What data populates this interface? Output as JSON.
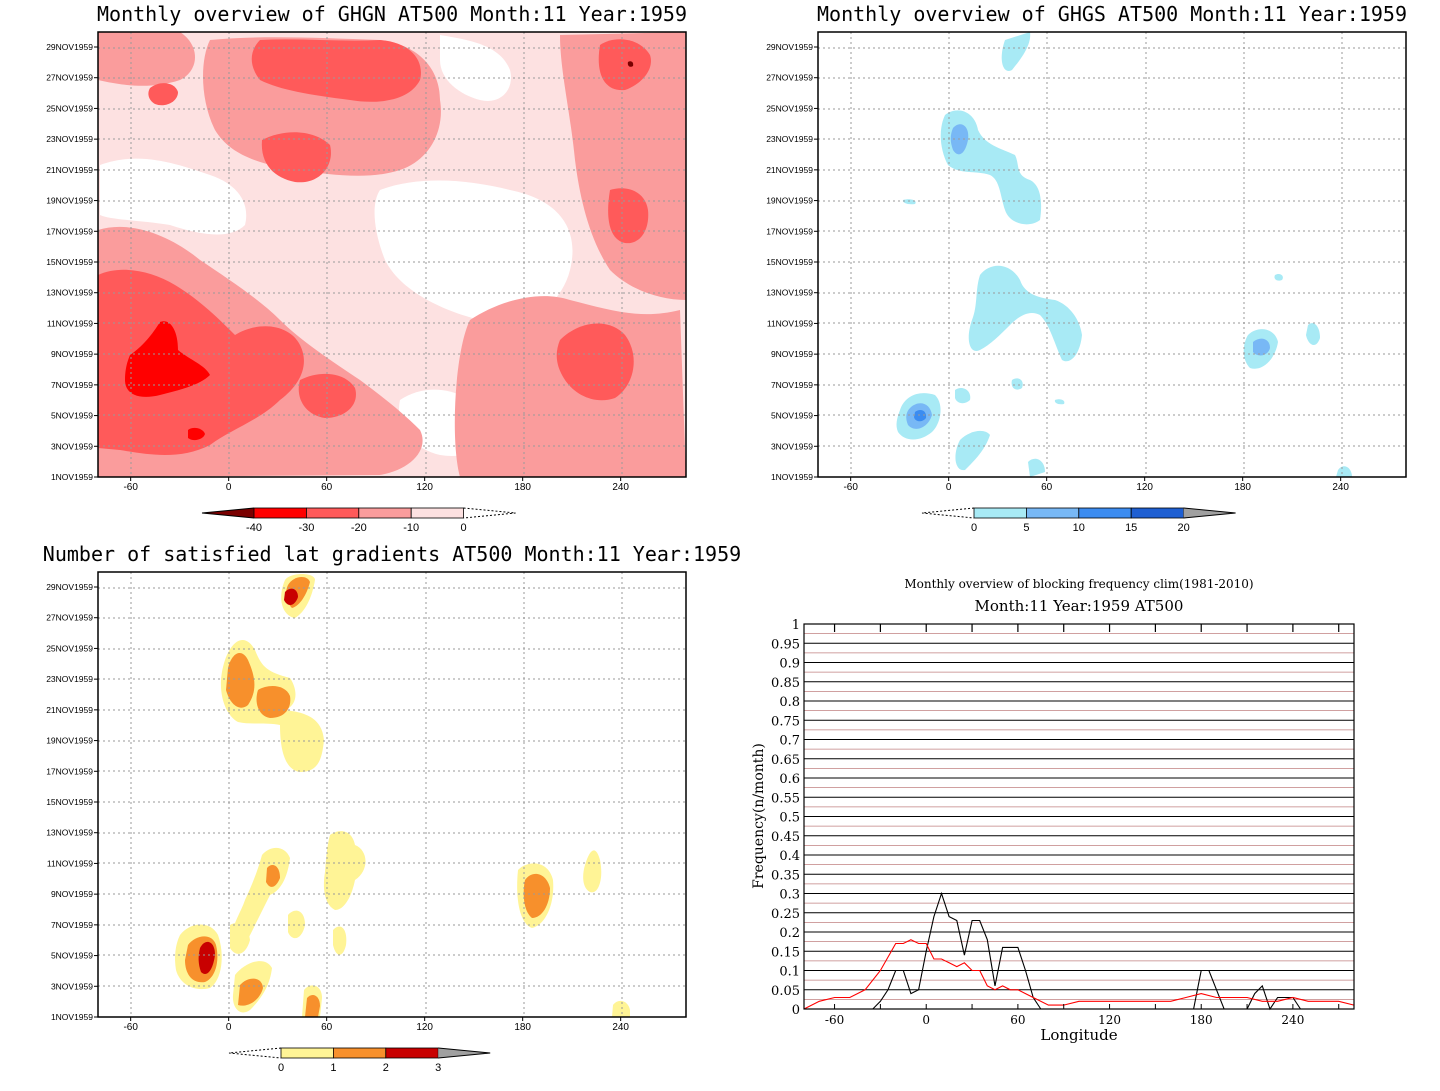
{
  "chart_data": [
    {
      "type": "heatmap",
      "title": "Monthly overview of GHGN AT500 Month:11 Year:1959",
      "x_ticks": [
        -60,
        0,
        60,
        120,
        180,
        240
      ],
      "y_ticks": [
        "1NOV1959",
        "3NOV1959",
        "5NOV1959",
        "7NOV1959",
        "9NOV1959",
        "11NOV1959",
        "13NOV1959",
        "15NOV1959",
        "17NOV1959",
        "19NOV1959",
        "21NOV1959",
        "23NOV1959",
        "25NOV1959",
        "27NOV1959",
        "29NOV1959"
      ],
      "xlim": [
        -80,
        280
      ],
      "levels": [
        -40,
        -30,
        -20,
        -10,
        0
      ],
      "colorbar_labels": [
        "-40",
        "-30",
        "-20",
        "-10",
        "0"
      ],
      "colors": [
        "#7a0000",
        "#ff0000",
        "#ff5a5a",
        "#fa9c9c",
        "#fde1e1",
        "#ffffff"
      ],
      "grid": true
    },
    {
      "type": "heatmap",
      "title": "Monthly overview of GHGS AT500 Month:11 Year:1959",
      "x_ticks": [
        -60,
        0,
        60,
        120,
        180,
        240
      ],
      "y_ticks": [
        "1NOV1959",
        "3NOV1959",
        "5NOV1959",
        "7NOV1959",
        "9NOV1959",
        "11NOV1959",
        "13NOV1959",
        "15NOV1959",
        "17NOV1959",
        "19NOV1959",
        "21NOV1959",
        "23NOV1959",
        "25NOV1959",
        "27NOV1959",
        "29NOV1959"
      ],
      "xlim": [
        -80,
        280
      ],
      "levels": [
        0,
        5,
        10,
        15,
        20
      ],
      "colorbar_labels": [
        "0",
        "5",
        "10",
        "15",
        "20"
      ],
      "colors": [
        "#ffffff",
        "#a8eaf5",
        "#78b8f5",
        "#3c8cf0",
        "#1e5fd2",
        "#a0a0a0"
      ],
      "grid": true
    },
    {
      "type": "heatmap",
      "title": "Number of satisfied lat gradients AT500 Month:11 Year:1959",
      "x_ticks": [
        -60,
        0,
        60,
        120,
        180,
        240
      ],
      "y_ticks": [
        "1NOV1959",
        "3NOV1959",
        "5NOV1959",
        "7NOV1959",
        "9NOV1959",
        "11NOV1959",
        "13NOV1959",
        "15NOV1959",
        "17NOV1959",
        "19NOV1959",
        "21NOV1959",
        "23NOV1959",
        "25NOV1959",
        "27NOV1959",
        "29NOV1959"
      ],
      "xlim": [
        -80,
        280
      ],
      "levels": [
        0,
        1,
        2,
        3
      ],
      "colorbar_labels": [
        "0",
        "1",
        "2",
        "3"
      ],
      "colors": [
        "#ffffff",
        "#fff496",
        "#f7902c",
        "#c80000",
        "#a0a0a0"
      ],
      "grid": true
    },
    {
      "type": "line",
      "title": "Monthly overview of blocking frequency clim(1981-2010)",
      "subtitle": "Month:11 Year:1959  AT500",
      "xlabel": "Longitude",
      "ylabel": "Frequency(n/month)",
      "xlim": [
        -80,
        280
      ],
      "ylim": [
        0,
        1
      ],
      "x_ticks": [
        -60,
        0,
        60,
        120,
        180,
        240
      ],
      "y_ticks": [
        "0",
        "0.05",
        "0.1",
        "0.15",
        "0.2",
        "0.25",
        "0.3",
        "0.35",
        "0.4",
        "0.45",
        "0.5",
        "0.55",
        "0.6",
        "0.65",
        "0.7",
        "0.75",
        "0.8",
        "0.85",
        "0.9",
        "0.95",
        "1"
      ],
      "series": [
        {
          "color": "#000000",
          "x": [
            -80,
            -35,
            -30,
            -25,
            -20,
            -15,
            -10,
            -5,
            0,
            5,
            10,
            15,
            20,
            25,
            30,
            35,
            40,
            45,
            50,
            55,
            60,
            65,
            70,
            75,
            80,
            175,
            180,
            185,
            190,
            195,
            210,
            215,
            220,
            225,
            230,
            235,
            240,
            245,
            250,
            280
          ],
          "y": [
            0,
            0,
            0.02,
            0.05,
            0.1,
            0.1,
            0.04,
            0.05,
            0.15,
            0.24,
            0.3,
            0.24,
            0.23,
            0.14,
            0.23,
            0.23,
            0.18,
            0.06,
            0.16,
            0.16,
            0.16,
            0.1,
            0.03,
            0,
            0,
            0,
            0.1,
            0.1,
            0.05,
            0,
            0,
            0.04,
            0.06,
            0,
            0.03,
            0.03,
            0.03,
            0,
            0,
            0
          ]
        },
        {
          "color": "#ff0000",
          "x": [
            -80,
            -70,
            -60,
            -50,
            -40,
            -30,
            -20,
            -15,
            -10,
            -5,
            0,
            5,
            10,
            15,
            20,
            25,
            30,
            35,
            40,
            45,
            50,
            55,
            60,
            65,
            70,
            80,
            90,
            100,
            110,
            120,
            130,
            140,
            150,
            160,
            170,
            180,
            190,
            200,
            210,
            220,
            230,
            240,
            250,
            260,
            270,
            280
          ],
          "y": [
            0,
            0.02,
            0.03,
            0.03,
            0.05,
            0.1,
            0.17,
            0.17,
            0.18,
            0.17,
            0.17,
            0.13,
            0.13,
            0.12,
            0.11,
            0.12,
            0.1,
            0.1,
            0.06,
            0.05,
            0.06,
            0.05,
            0.05,
            0.04,
            0.03,
            0.01,
            0.01,
            0.02,
            0.02,
            0.02,
            0.02,
            0.02,
            0.02,
            0.02,
            0.03,
            0.04,
            0.03,
            0.03,
            0.03,
            0.02,
            0.02,
            0.03,
            0.02,
            0.02,
            0.02,
            0.01
          ]
        }
      ],
      "grid": true
    }
  ]
}
